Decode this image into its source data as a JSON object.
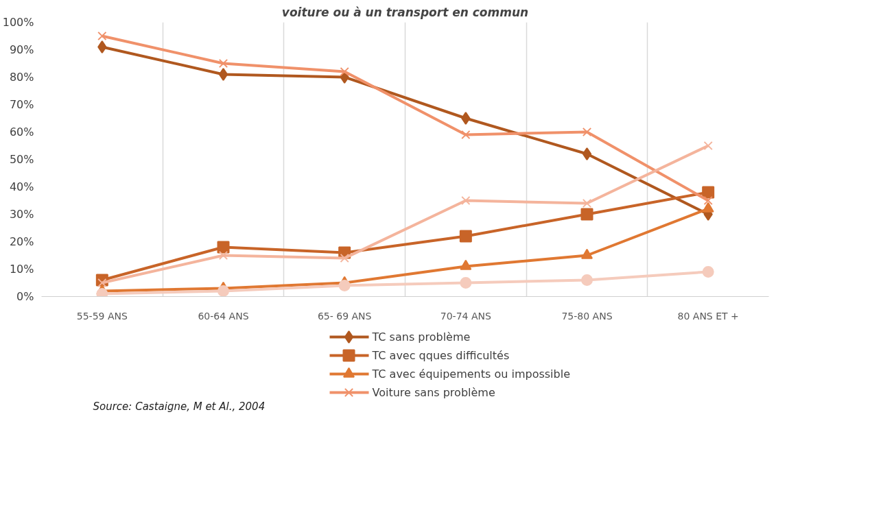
{
  "chart_data": {
    "type": "line",
    "title": "voiture ou à un transport en commun",
    "categories": [
      "55-59 ANS",
      "60-64 ANS",
      "65- 69 ANS",
      "70-74 ANS",
      "75-80 ANS",
      "80 ANS ET +"
    ],
    "series": [
      {
        "name": "TC sans problème",
        "color": "#b0581f",
        "marker": "diamond",
        "values": [
          91,
          81,
          80,
          65,
          52,
          30
        ]
      },
      {
        "name": "TC avec qques difficultés",
        "color": "#c86428",
        "marker": "square",
        "values": [
          6,
          18,
          16,
          22,
          30,
          38
        ]
      },
      {
        "name": "TC avec équipements ou impossible",
        "color": "#e07832",
        "marker": "triangle",
        "values": [
          2,
          3,
          5,
          11,
          15,
          32
        ]
      },
      {
        "name": "Voiture sans problème",
        "color": "#f0916a",
        "marker": "cross",
        "values": [
          95,
          85,
          82,
          59,
          60,
          35
        ]
      },
      {
        "color": "#f4b49c",
        "marker": "cross",
        "values": [
          5,
          15,
          14,
          35,
          34,
          55
        ]
      },
      {
        "color": "#f5cbbc",
        "marker": "circle",
        "values": [
          1,
          2,
          4,
          5,
          6,
          9
        ]
      }
    ],
    "ylim": [
      0,
      100
    ],
    "yticks": [
      {
        "value": 0,
        "label": "0%"
      },
      {
        "value": 10,
        "label": "10%"
      },
      {
        "value": 20,
        "label": "20%"
      },
      {
        "value": 30,
        "label": "30%"
      },
      {
        "value": 40,
        "label": "40%"
      },
      {
        "value": 50,
        "label": "50%"
      },
      {
        "value": 60,
        "label": "60%"
      },
      {
        "value": 70,
        "label": "70%"
      },
      {
        "value": 80,
        "label": "80%"
      },
      {
        "value": 90,
        "label": "90%"
      },
      {
        "value": 100,
        "label": "100%"
      }
    ],
    "grid": "x",
    "legend": "bottom",
    "line_style": "solid",
    "annotations": [
      "Source: Castaigne, M et Al., 2004"
    ]
  }
}
